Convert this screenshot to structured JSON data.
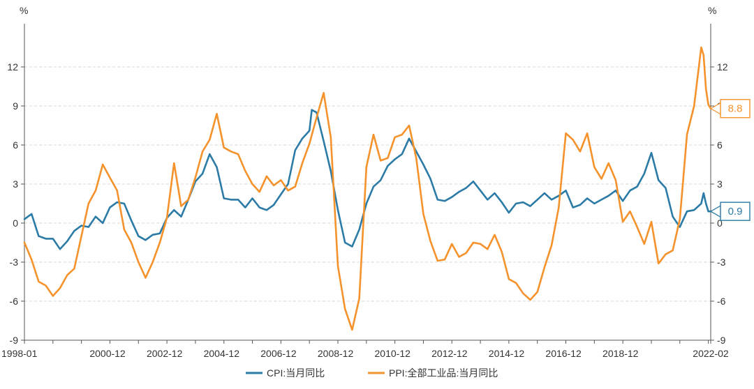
{
  "chart_data": {
    "type": "line",
    "title": "",
    "xlabel": "",
    "ylabel": "",
    "unit_left": "%",
    "unit_right": "%",
    "ylim": [
      -9,
      15
    ],
    "y_ticks": [
      -9,
      -6,
      -3,
      0,
      3,
      6,
      9,
      12
    ],
    "x_range": [
      "1998-01",
      "2022-02"
    ],
    "x_tick_labels": [
      "1998-01",
      "2000-12",
      "2002-12",
      "2004-12",
      "2006-12",
      "2008-12",
      "2010-12",
      "2012-12",
      "2014-12",
      "2016-12",
      "2018-12",
      "2022-02"
    ],
    "grid": "horizontal-dashed",
    "legend_position": "bottom-center",
    "colors": {
      "cpi": "#2b7ba6",
      "ppi": "#f5922b",
      "grid": "#d9d9d9",
      "axis": "#555555"
    },
    "series": [
      {
        "name": "CPI:当月同比",
        "color": "#2b7ba6",
        "last_value_label": "0.9",
        "points": [
          [
            "1998-01",
            0.3
          ],
          [
            "1998-04",
            0.7
          ],
          [
            "1998-07",
            -1.0
          ],
          [
            "1998-10",
            -1.2
          ],
          [
            "1999-01",
            -1.2
          ],
          [
            "1999-04",
            -2.0
          ],
          [
            "1999-07",
            -1.4
          ],
          [
            "1999-10",
            -0.6
          ],
          [
            "2000-01",
            -0.2
          ],
          [
            "2000-04",
            -0.3
          ],
          [
            "2000-07",
            0.5
          ],
          [
            "2000-10",
            0.0
          ],
          [
            "2001-01",
            1.2
          ],
          [
            "2001-04",
            1.6
          ],
          [
            "2001-07",
            1.5
          ],
          [
            "2001-10",
            0.2
          ],
          [
            "2002-01",
            -1.0
          ],
          [
            "2002-04",
            -1.3
          ],
          [
            "2002-07",
            -0.9
          ],
          [
            "2002-10",
            -0.8
          ],
          [
            "2003-01",
            0.4
          ],
          [
            "2003-04",
            1.0
          ],
          [
            "2003-07",
            0.5
          ],
          [
            "2003-10",
            1.8
          ],
          [
            "2004-01",
            3.2
          ],
          [
            "2004-04",
            3.8
          ],
          [
            "2004-07",
            5.3
          ],
          [
            "2004-10",
            4.3
          ],
          [
            "2005-01",
            1.9
          ],
          [
            "2005-04",
            1.8
          ],
          [
            "2005-07",
            1.8
          ],
          [
            "2005-10",
            1.2
          ],
          [
            "2006-01",
            1.9
          ],
          [
            "2006-04",
            1.2
          ],
          [
            "2006-07",
            1.0
          ],
          [
            "2006-10",
            1.4
          ],
          [
            "2007-01",
            2.2
          ],
          [
            "2007-04",
            3.0
          ],
          [
            "2007-07",
            5.6
          ],
          [
            "2007-10",
            6.5
          ],
          [
            "2008-01",
            7.1
          ],
          [
            "2008-02",
            8.7
          ],
          [
            "2008-04",
            8.5
          ],
          [
            "2008-07",
            6.3
          ],
          [
            "2008-10",
            4.0
          ],
          [
            "2009-01",
            1.0
          ],
          [
            "2009-04",
            -1.5
          ],
          [
            "2009-07",
            -1.8
          ],
          [
            "2009-10",
            -0.5
          ],
          [
            "2010-01",
            1.5
          ],
          [
            "2010-04",
            2.8
          ],
          [
            "2010-07",
            3.3
          ],
          [
            "2010-10",
            4.4
          ],
          [
            "2011-01",
            4.9
          ],
          [
            "2011-04",
            5.3
          ],
          [
            "2011-07",
            6.5
          ],
          [
            "2011-10",
            5.5
          ],
          [
            "2012-01",
            4.5
          ],
          [
            "2012-04",
            3.4
          ],
          [
            "2012-07",
            1.8
          ],
          [
            "2012-10",
            1.7
          ],
          [
            "2013-01",
            2.0
          ],
          [
            "2013-04",
            2.4
          ],
          [
            "2013-07",
            2.7
          ],
          [
            "2013-10",
            3.2
          ],
          [
            "2014-01",
            2.5
          ],
          [
            "2014-04",
            1.8
          ],
          [
            "2014-07",
            2.3
          ],
          [
            "2014-10",
            1.6
          ],
          [
            "2015-01",
            0.8
          ],
          [
            "2015-04",
            1.5
          ],
          [
            "2015-07",
            1.6
          ],
          [
            "2015-10",
            1.3
          ],
          [
            "2016-01",
            1.8
          ],
          [
            "2016-04",
            2.3
          ],
          [
            "2016-07",
            1.8
          ],
          [
            "2016-10",
            2.1
          ],
          [
            "2017-01",
            2.5
          ],
          [
            "2017-04",
            1.2
          ],
          [
            "2017-07",
            1.4
          ],
          [
            "2017-10",
            1.9
          ],
          [
            "2018-01",
            1.5
          ],
          [
            "2018-04",
            1.8
          ],
          [
            "2018-07",
            2.1
          ],
          [
            "2018-10",
            2.5
          ],
          [
            "2019-01",
            1.7
          ],
          [
            "2019-04",
            2.5
          ],
          [
            "2019-07",
            2.8
          ],
          [
            "2019-10",
            3.8
          ],
          [
            "2020-01",
            5.4
          ],
          [
            "2020-04",
            3.3
          ],
          [
            "2020-07",
            2.7
          ],
          [
            "2020-10",
            0.5
          ],
          [
            "2021-01",
            -0.3
          ],
          [
            "2021-04",
            0.9
          ],
          [
            "2021-07",
            1.0
          ],
          [
            "2021-10",
            1.5
          ],
          [
            "2021-11",
            2.3
          ],
          [
            "2021-12",
            1.5
          ],
          [
            "2022-01",
            0.9
          ],
          [
            "2022-02",
            0.9
          ]
        ]
      },
      {
        "name": "PPI:全部工业品:当月同比",
        "color": "#f5922b",
        "last_value_label": "8.8",
        "points": [
          [
            "1998-01",
            -1.5
          ],
          [
            "1998-04",
            -2.8
          ],
          [
            "1998-07",
            -4.5
          ],
          [
            "1998-10",
            -4.8
          ],
          [
            "1999-01",
            -5.6
          ],
          [
            "1999-04",
            -5.0
          ],
          [
            "1999-07",
            -4.0
          ],
          [
            "1999-10",
            -3.5
          ],
          [
            "2000-01",
            -1.0
          ],
          [
            "2000-04",
            1.5
          ],
          [
            "2000-07",
            2.5
          ],
          [
            "2000-10",
            4.5
          ],
          [
            "2001-01",
            3.5
          ],
          [
            "2001-04",
            2.5
          ],
          [
            "2001-07",
            -0.5
          ],
          [
            "2001-10",
            -1.5
          ],
          [
            "2002-01",
            -3.0
          ],
          [
            "2002-04",
            -4.2
          ],
          [
            "2002-07",
            -3.0
          ],
          [
            "2002-10",
            -1.5
          ],
          [
            "2003-01",
            0.4
          ],
          [
            "2003-04",
            4.6
          ],
          [
            "2003-07",
            1.3
          ],
          [
            "2003-10",
            1.8
          ],
          [
            "2004-01",
            3.5
          ],
          [
            "2004-04",
            5.5
          ],
          [
            "2004-07",
            6.4
          ],
          [
            "2004-10",
            8.4
          ],
          [
            "2005-01",
            5.8
          ],
          [
            "2005-04",
            5.5
          ],
          [
            "2005-07",
            5.3
          ],
          [
            "2005-10",
            4.0
          ],
          [
            "2006-01",
            3.0
          ],
          [
            "2006-04",
            2.4
          ],
          [
            "2006-07",
            3.6
          ],
          [
            "2006-10",
            2.9
          ],
          [
            "2007-01",
            3.3
          ],
          [
            "2007-04",
            2.5
          ],
          [
            "2007-07",
            2.8
          ],
          [
            "2007-10",
            4.6
          ],
          [
            "2008-01",
            6.1
          ],
          [
            "2008-04",
            8.1
          ],
          [
            "2008-07",
            10.0
          ],
          [
            "2008-10",
            6.6
          ],
          [
            "2009-01",
            -3.3
          ],
          [
            "2009-04",
            -6.6
          ],
          [
            "2009-07",
            -8.2
          ],
          [
            "2009-10",
            -5.8
          ],
          [
            "2010-01",
            4.3
          ],
          [
            "2010-04",
            6.8
          ],
          [
            "2010-07",
            4.8
          ],
          [
            "2010-10",
            5.0
          ],
          [
            "2011-01",
            6.6
          ],
          [
            "2011-04",
            6.8
          ],
          [
            "2011-07",
            7.5
          ],
          [
            "2011-10",
            5.0
          ],
          [
            "2012-01",
            0.7
          ],
          [
            "2012-04",
            -1.4
          ],
          [
            "2012-07",
            -2.9
          ],
          [
            "2012-10",
            -2.8
          ],
          [
            "2013-01",
            -1.6
          ],
          [
            "2013-04",
            -2.6
          ],
          [
            "2013-07",
            -2.3
          ],
          [
            "2013-10",
            -1.5
          ],
          [
            "2014-01",
            -1.6
          ],
          [
            "2014-04",
            -2.0
          ],
          [
            "2014-07",
            -0.9
          ],
          [
            "2014-10",
            -2.2
          ],
          [
            "2015-01",
            -4.3
          ],
          [
            "2015-04",
            -4.6
          ],
          [
            "2015-07",
            -5.4
          ],
          [
            "2015-10",
            -5.9
          ],
          [
            "2016-01",
            -5.3
          ],
          [
            "2016-04",
            -3.4
          ],
          [
            "2016-07",
            -1.7
          ],
          [
            "2016-10",
            1.2
          ],
          [
            "2017-01",
            6.9
          ],
          [
            "2017-04",
            6.4
          ],
          [
            "2017-07",
            5.5
          ],
          [
            "2017-10",
            6.9
          ],
          [
            "2018-01",
            4.3
          ],
          [
            "2018-04",
            3.4
          ],
          [
            "2018-07",
            4.6
          ],
          [
            "2018-10",
            3.3
          ],
          [
            "2019-01",
            0.1
          ],
          [
            "2019-04",
            0.9
          ],
          [
            "2019-07",
            -0.3
          ],
          [
            "2019-10",
            -1.6
          ],
          [
            "2020-01",
            0.1
          ],
          [
            "2020-04",
            -3.1
          ],
          [
            "2020-07",
            -2.4
          ],
          [
            "2020-10",
            -2.1
          ],
          [
            "2021-01",
            0.3
          ],
          [
            "2021-04",
            6.8
          ],
          [
            "2021-07",
            9.0
          ],
          [
            "2021-10",
            13.5
          ],
          [
            "2021-11",
            12.9
          ],
          [
            "2021-12",
            10.3
          ],
          [
            "2022-01",
            9.1
          ],
          [
            "2022-02",
            8.8
          ]
        ]
      }
    ]
  }
}
